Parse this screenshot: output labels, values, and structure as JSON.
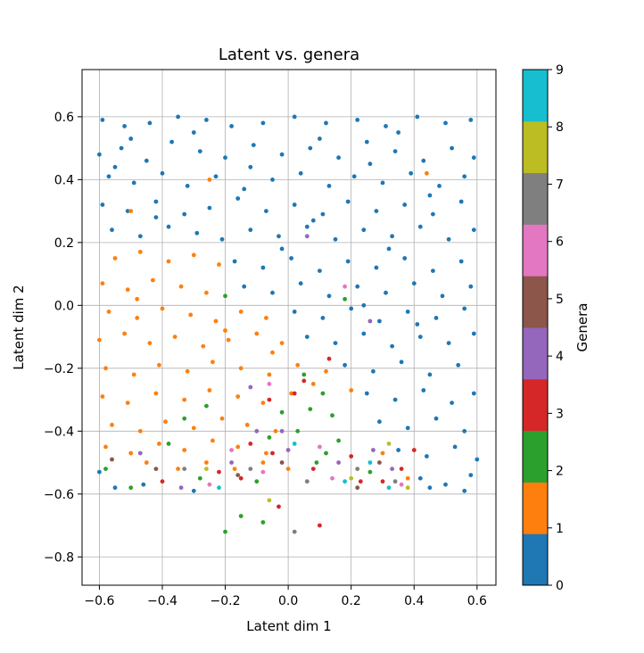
{
  "chart_data": {
    "type": "scatter",
    "title": "Latent vs. genera",
    "xlabel": "Latent dim 1",
    "ylabel": "Latent dim 2",
    "xlim": [
      -0.655,
      0.66
    ],
    "ylim": [
      -0.89,
      0.75
    ],
    "xticks": [
      -0.6,
      -0.4,
      -0.2,
      0.0,
      0.2,
      0.4,
      0.6
    ],
    "xtick_labels": [
      "−0.6",
      "−0.4",
      "−0.2",
      "0.0",
      "0.2",
      "0.4",
      "0.6"
    ],
    "yticks": [
      -0.8,
      -0.6,
      -0.4,
      -0.2,
      0.0,
      0.2,
      0.4,
      0.6
    ],
    "ytick_labels": [
      "−0.8",
      "−0.6",
      "−0.4",
      "−0.2",
      "0.0",
      "0.2",
      "0.4",
      "0.6"
    ],
    "grid": true,
    "colorbar": {
      "label": "Genera",
      "min": 0,
      "max": 9,
      "ticks": [
        0,
        1,
        2,
        3,
        4,
        5,
        6,
        7,
        8,
        9
      ],
      "tick_labels": [
        "0",
        "1",
        "2",
        "3",
        "4",
        "5",
        "6",
        "7",
        "8",
        "9"
      ],
      "colors": [
        "#1f77b4",
        "#ff7f0e",
        "#2ca02c",
        "#d62728",
        "#9467bd",
        "#8c564b",
        "#e377c2",
        "#7f7f7f",
        "#bcbd22",
        "#17becf"
      ]
    },
    "points": [
      [
        -0.59,
        0.59,
        0
      ],
      [
        -0.52,
        0.57,
        0
      ],
      [
        -0.44,
        0.58,
        0
      ],
      [
        -0.35,
        0.6,
        0
      ],
      [
        -0.26,
        0.59,
        0
      ],
      [
        -0.18,
        0.57,
        0
      ],
      [
        -0.08,
        0.58,
        0
      ],
      [
        0.02,
        0.6,
        0
      ],
      [
        0.12,
        0.58,
        0
      ],
      [
        0.22,
        0.59,
        0
      ],
      [
        0.31,
        0.57,
        0
      ],
      [
        0.41,
        0.6,
        0
      ],
      [
        0.5,
        0.58,
        0
      ],
      [
        0.58,
        0.59,
        0
      ],
      [
        -0.6,
        0.48,
        0
      ],
      [
        -0.53,
        0.5,
        0
      ],
      [
        -0.45,
        0.46,
        0
      ],
      [
        -0.37,
        0.52,
        0
      ],
      [
        -0.28,
        0.49,
        0
      ],
      [
        -0.2,
        0.47,
        0
      ],
      [
        -0.11,
        0.51,
        0
      ],
      [
        -0.02,
        0.48,
        0
      ],
      [
        0.07,
        0.5,
        0
      ],
      [
        0.16,
        0.47,
        0
      ],
      [
        0.25,
        0.52,
        0
      ],
      [
        0.34,
        0.49,
        0
      ],
      [
        0.43,
        0.46,
        0
      ],
      [
        0.52,
        0.5,
        0
      ],
      [
        0.59,
        0.47,
        0
      ],
      [
        -0.57,
        0.41,
        0
      ],
      [
        -0.49,
        0.39,
        0
      ],
      [
        -0.4,
        0.42,
        0
      ],
      [
        -0.32,
        0.38,
        0
      ],
      [
        -0.23,
        0.41,
        0
      ],
      [
        -0.14,
        0.37,
        0
      ],
      [
        -0.05,
        0.4,
        0
      ],
      [
        0.04,
        0.42,
        0
      ],
      [
        0.13,
        0.38,
        0
      ],
      [
        0.21,
        0.41,
        0
      ],
      [
        0.3,
        0.39,
        0
      ],
      [
        0.39,
        0.42,
        0
      ],
      [
        0.48,
        0.38,
        0
      ],
      [
        0.56,
        0.41,
        0
      ],
      [
        -0.59,
        0.32,
        0
      ],
      [
        -0.51,
        0.3,
        0
      ],
      [
        -0.42,
        0.33,
        0
      ],
      [
        -0.33,
        0.29,
        0
      ],
      [
        -0.25,
        0.31,
        0
      ],
      [
        -0.16,
        0.34,
        0
      ],
      [
        -0.07,
        0.3,
        0
      ],
      [
        0.02,
        0.32,
        0
      ],
      [
        0.11,
        0.29,
        0
      ],
      [
        0.19,
        0.33,
        0
      ],
      [
        0.28,
        0.3,
        0
      ],
      [
        0.37,
        0.32,
        0
      ],
      [
        0.46,
        0.29,
        0
      ],
      [
        0.55,
        0.33,
        0
      ],
      [
        -0.56,
        0.24,
        0
      ],
      [
        -0.47,
        0.22,
        0
      ],
      [
        -0.38,
        0.25,
        0
      ],
      [
        -0.29,
        0.23,
        0
      ],
      [
        -0.21,
        0.21,
        0
      ],
      [
        -0.12,
        0.24,
        0
      ],
      [
        -0.03,
        0.22,
        0
      ],
      [
        0.06,
        0.25,
        0
      ],
      [
        0.15,
        0.21,
        0
      ],
      [
        0.24,
        0.24,
        0
      ],
      [
        0.33,
        0.22,
        0
      ],
      [
        0.42,
        0.25,
        0
      ],
      [
        0.51,
        0.21,
        0
      ],
      [
        0.59,
        0.24,
        0
      ],
      [
        -0.17,
        0.14,
        0
      ],
      [
        -0.08,
        0.12,
        0
      ],
      [
        0.01,
        0.15,
        0
      ],
      [
        0.1,
        0.11,
        0
      ],
      [
        0.19,
        0.14,
        0
      ],
      [
        0.28,
        0.12,
        0
      ],
      [
        0.37,
        0.15,
        0
      ],
      [
        0.46,
        0.11,
        0
      ],
      [
        0.55,
        0.14,
        0
      ],
      [
        -0.14,
        0.06,
        0
      ],
      [
        -0.05,
        0.04,
        0
      ],
      [
        0.04,
        0.07,
        0
      ],
      [
        0.13,
        0.03,
        0
      ],
      [
        0.22,
        0.06,
        0
      ],
      [
        0.31,
        0.04,
        0
      ],
      [
        0.4,
        0.07,
        0
      ],
      [
        0.49,
        0.03,
        0
      ],
      [
        0.58,
        0.06,
        0
      ],
      [
        0.02,
        -0.02,
        0
      ],
      [
        0.11,
        -0.04,
        0
      ],
      [
        0.2,
        -0.01,
        0
      ],
      [
        0.29,
        -0.05,
        0
      ],
      [
        0.38,
        -0.02,
        0
      ],
      [
        0.47,
        -0.04,
        0
      ],
      [
        0.56,
        -0.01,
        0
      ],
      [
        0.06,
        -0.1,
        0
      ],
      [
        0.15,
        -0.12,
        0
      ],
      [
        0.24,
        -0.09,
        0
      ],
      [
        0.33,
        -0.13,
        0
      ],
      [
        0.42,
        -0.1,
        0
      ],
      [
        0.51,
        -0.12,
        0
      ],
      [
        0.59,
        -0.09,
        0
      ],
      [
        0.18,
        -0.19,
        0
      ],
      [
        0.27,
        -0.21,
        0
      ],
      [
        0.36,
        -0.18,
        0
      ],
      [
        0.45,
        -0.22,
        0
      ],
      [
        0.54,
        -0.19,
        0
      ],
      [
        0.25,
        -0.28,
        0
      ],
      [
        0.34,
        -0.3,
        0
      ],
      [
        0.43,
        -0.27,
        0
      ],
      [
        0.52,
        -0.31,
        0
      ],
      [
        0.59,
        -0.28,
        0
      ],
      [
        0.29,
        -0.37,
        0
      ],
      [
        0.38,
        -0.39,
        0
      ],
      [
        0.47,
        -0.36,
        0
      ],
      [
        0.56,
        -0.4,
        0
      ],
      [
        0.35,
        -0.46,
        0
      ],
      [
        0.44,
        -0.48,
        0
      ],
      [
        0.53,
        -0.45,
        0
      ],
      [
        0.6,
        -0.49,
        0
      ],
      [
        0.42,
        -0.55,
        0
      ],
      [
        0.5,
        -0.57,
        0
      ],
      [
        0.58,
        -0.54,
        0
      ],
      [
        0.56,
        -0.59,
        0
      ],
      [
        0.45,
        -0.58,
        0
      ],
      [
        -0.55,
        -0.58,
        0
      ],
      [
        -0.46,
        -0.57,
        0
      ],
      [
        -0.6,
        -0.53,
        0
      ],
      [
        -0.3,
        -0.59,
        0
      ],
      [
        -0.5,
        0.53,
        0
      ],
      [
        -0.3,
        0.55,
        0
      ],
      [
        0.1,
        0.53,
        0
      ],
      [
        0.35,
        0.55,
        0
      ],
      [
        -0.55,
        0.44,
        0
      ],
      [
        0.26,
        0.45,
        0
      ],
      [
        -0.12,
        0.44,
        0
      ],
      [
        0.45,
        0.35,
        0
      ],
      [
        -0.42,
        0.28,
        0
      ],
      [
        0.08,
        0.27,
        0
      ],
      [
        0.32,
        0.18,
        0
      ],
      [
        -0.02,
        0.18,
        0
      ],
      [
        0.24,
        0.0,
        0
      ],
      [
        0.41,
        -0.06,
        0
      ],
      [
        -0.25,
        0.4,
        1
      ],
      [
        0.44,
        0.42,
        1
      ],
      [
        -0.55,
        0.15,
        1
      ],
      [
        -0.47,
        0.17,
        1
      ],
      [
        -0.38,
        0.14,
        1
      ],
      [
        -0.3,
        0.16,
        1
      ],
      [
        -0.22,
        0.13,
        1
      ],
      [
        -0.59,
        0.07,
        1
      ],
      [
        -0.51,
        0.05,
        1
      ],
      [
        -0.43,
        0.08,
        1
      ],
      [
        -0.34,
        0.06,
        1
      ],
      [
        -0.26,
        0.04,
        1
      ],
      [
        -0.57,
        -0.02,
        1
      ],
      [
        -0.48,
        -0.04,
        1
      ],
      [
        -0.4,
        -0.01,
        1
      ],
      [
        -0.31,
        -0.03,
        1
      ],
      [
        -0.23,
        -0.05,
        1
      ],
      [
        -0.15,
        -0.02,
        1
      ],
      [
        -0.07,
        -0.04,
        1
      ],
      [
        -0.6,
        -0.11,
        1
      ],
      [
        -0.52,
        -0.09,
        1
      ],
      [
        -0.44,
        -0.12,
        1
      ],
      [
        -0.36,
        -0.1,
        1
      ],
      [
        -0.27,
        -0.13,
        1
      ],
      [
        -0.19,
        -0.11,
        1
      ],
      [
        -0.1,
        -0.09,
        1
      ],
      [
        -0.02,
        -0.12,
        1
      ],
      [
        -0.58,
        -0.2,
        1
      ],
      [
        -0.49,
        -0.22,
        1
      ],
      [
        -0.41,
        -0.19,
        1
      ],
      [
        -0.32,
        -0.21,
        1
      ],
      [
        -0.24,
        -0.18,
        1
      ],
      [
        -0.15,
        -0.2,
        1
      ],
      [
        -0.06,
        -0.22,
        1
      ],
      [
        0.03,
        -0.19,
        1
      ],
      [
        0.12,
        -0.21,
        1
      ],
      [
        -0.59,
        -0.29,
        1
      ],
      [
        -0.51,
        -0.31,
        1
      ],
      [
        -0.42,
        -0.28,
        1
      ],
      [
        -0.33,
        -0.3,
        1
      ],
      [
        -0.25,
        -0.27,
        1
      ],
      [
        -0.16,
        -0.29,
        1
      ],
      [
        -0.08,
        -0.31,
        1
      ],
      [
        0.01,
        -0.28,
        1
      ],
      [
        0.2,
        -0.27,
        1
      ],
      [
        -0.56,
        -0.38,
        1
      ],
      [
        -0.47,
        -0.4,
        1
      ],
      [
        -0.39,
        -0.37,
        1
      ],
      [
        -0.3,
        -0.39,
        1
      ],
      [
        -0.21,
        -0.36,
        1
      ],
      [
        -0.13,
        -0.38,
        1
      ],
      [
        -0.04,
        -0.4,
        1
      ],
      [
        -0.58,
        -0.45,
        1
      ],
      [
        -0.5,
        -0.47,
        1
      ],
      [
        -0.41,
        -0.44,
        1
      ],
      [
        -0.33,
        -0.46,
        1
      ],
      [
        -0.24,
        -0.43,
        1
      ],
      [
        -0.16,
        -0.45,
        1
      ],
      [
        -0.07,
        -0.47,
        1
      ],
      [
        -0.45,
        -0.5,
        1
      ],
      [
        -0.35,
        -0.52,
        1
      ],
      [
        -0.26,
        -0.5,
        1
      ],
      [
        -0.17,
        -0.52,
        1
      ],
      [
        -0.08,
        -0.5,
        1
      ],
      [
        0.0,
        -0.52,
        1
      ],
      [
        0.3,
        -0.47,
        1
      ],
      [
        0.38,
        -0.55,
        1
      ],
      [
        -0.5,
        0.3,
        1
      ],
      [
        -0.48,
        0.02,
        1
      ],
      [
        -0.2,
        -0.08,
        1
      ],
      [
        -0.05,
        -0.15,
        1
      ],
      [
        0.08,
        -0.25,
        1
      ],
      [
        -0.15,
        -0.67,
        2
      ],
      [
        -0.2,
        -0.72,
        2
      ],
      [
        -0.08,
        -0.69,
        2
      ],
      [
        -0.33,
        -0.36,
        2
      ],
      [
        -0.26,
        -0.32,
        2
      ],
      [
        -0.38,
        -0.44,
        2
      ],
      [
        0.05,
        -0.22,
        2
      ],
      [
        0.11,
        -0.28,
        2
      ],
      [
        0.07,
        -0.33,
        2
      ],
      [
        0.14,
        -0.35,
        2
      ],
      [
        -0.02,
        -0.34,
        2
      ],
      [
        0.03,
        -0.4,
        2
      ],
      [
        -0.06,
        -0.42,
        2
      ],
      [
        0.16,
        -0.43,
        2
      ],
      [
        0.12,
        -0.47,
        2
      ],
      [
        -0.58,
        -0.52,
        2
      ],
      [
        -0.28,
        -0.55,
        2
      ],
      [
        -0.5,
        -0.58,
        2
      ],
      [
        -0.1,
        -0.56,
        2
      ],
      [
        0.09,
        -0.5,
        2
      ],
      [
        0.26,
        -0.53,
        2
      ],
      [
        -0.2,
        0.03,
        2
      ],
      [
        0.18,
        0.02,
        2
      ],
      [
        -0.4,
        -0.56,
        3
      ],
      [
        -0.22,
        -0.53,
        3
      ],
      [
        -0.15,
        -0.55,
        3
      ],
      [
        -0.12,
        -0.44,
        3
      ],
      [
        0.08,
        -0.52,
        3
      ],
      [
        0.2,
        -0.48,
        3
      ],
      [
        0.23,
        -0.56,
        3
      ],
      [
        0.3,
        -0.56,
        3
      ],
      [
        0.36,
        -0.52,
        3
      ],
      [
        0.4,
        -0.46,
        3
      ],
      [
        -0.05,
        -0.47,
        3
      ],
      [
        0.1,
        -0.7,
        3
      ],
      [
        -0.03,
        -0.64,
        3
      ],
      [
        0.02,
        -0.28,
        3
      ],
      [
        -0.06,
        -0.3,
        3
      ],
      [
        0.13,
        -0.17,
        3
      ],
      [
        0.05,
        -0.24,
        3
      ],
      [
        -0.47,
        -0.47,
        4
      ],
      [
        -0.34,
        -0.58,
        4
      ],
      [
        -0.18,
        -0.5,
        4
      ],
      [
        -0.1,
        -0.4,
        4
      ],
      [
        0.0,
        -0.46,
        4
      ],
      [
        -0.02,
        -0.4,
        4
      ],
      [
        0.16,
        -0.5,
        4
      ],
      [
        0.27,
        -0.46,
        4
      ],
      [
        0.33,
        -0.52,
        4
      ],
      [
        0.26,
        -0.05,
        4
      ],
      [
        0.06,
        0.22,
        4
      ],
      [
        -0.12,
        -0.26,
        4
      ],
      [
        -0.42,
        -0.52,
        5
      ],
      [
        -0.16,
        -0.54,
        5
      ],
      [
        0.22,
        -0.58,
        5
      ],
      [
        0.29,
        -0.5,
        5
      ],
      [
        -0.56,
        -0.49,
        5
      ],
      [
        -0.02,
        -0.5,
        5
      ],
      [
        -0.25,
        -0.57,
        6
      ],
      [
        -0.08,
        -0.53,
        6
      ],
      [
        0.14,
        -0.55,
        6
      ],
      [
        0.36,
        -0.57,
        6
      ],
      [
        -0.18,
        -0.46,
        6
      ],
      [
        0.18,
        0.06,
        6
      ],
      [
        0.1,
        -0.45,
        6
      ],
      [
        -0.06,
        -0.25,
        6
      ],
      [
        0.34,
        -0.56,
        7
      ],
      [
        -0.12,
        -0.52,
        7
      ],
      [
        0.06,
        -0.56,
        7
      ],
      [
        0.02,
        -0.72,
        7
      ],
      [
        -0.33,
        -0.52,
        7
      ],
      [
        0.22,
        -0.52,
        7
      ],
      [
        0.32,
        -0.44,
        8
      ],
      [
        0.38,
        -0.58,
        8
      ],
      [
        -0.26,
        -0.52,
        8
      ],
      [
        0.2,
        -0.55,
        8
      ],
      [
        -0.06,
        -0.62,
        8
      ],
      [
        -0.22,
        -0.58,
        9
      ],
      [
        0.26,
        -0.5,
        9
      ],
      [
        0.18,
        -0.56,
        9
      ],
      [
        0.02,
        -0.44,
        9
      ],
      [
        0.32,
        -0.58,
        9
      ]
    ]
  }
}
